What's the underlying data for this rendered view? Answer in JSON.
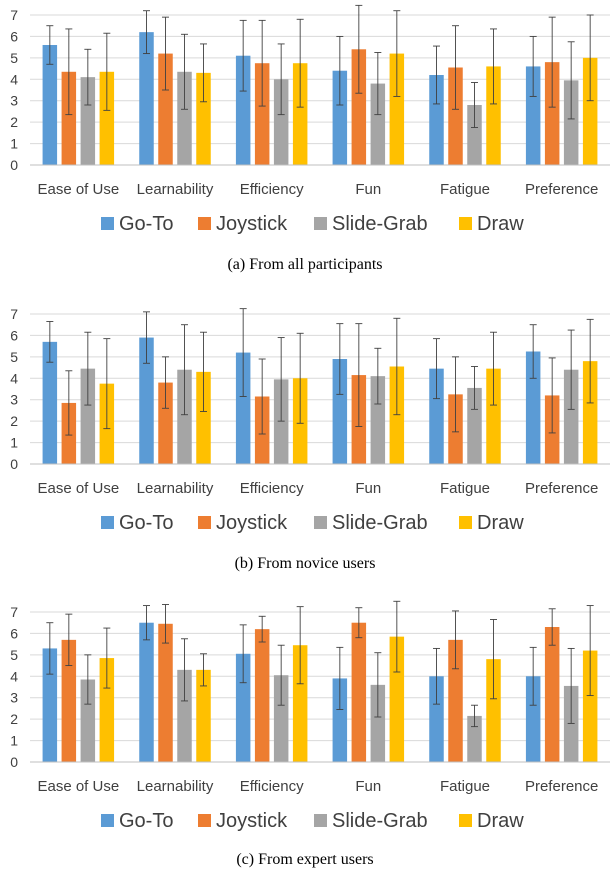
{
  "legend_colors": [
    "#5B9BD5",
    "#ED7D31",
    "#A5A5A5",
    "#FFC000"
  ],
  "chart_data": [
    {
      "type": "bar",
      "caption": "(a)  From all participants",
      "categories": [
        "Ease of Use",
        "Learnability",
        "Efficiency",
        "Fun",
        "Fatigue",
        "Preference"
      ],
      "yticks": [
        "0",
        "1",
        "2",
        "3",
        "4",
        "5",
        "6",
        "7"
      ],
      "ylim": [
        0,
        7
      ],
      "grid": true,
      "error_bars": true,
      "legend_position": "bottom",
      "series": [
        {
          "name": "Go-To",
          "values": [
            5.6,
            6.2,
            5.1,
            4.4,
            4.2,
            4.6
          ],
          "errors": [
            0.9,
            1.0,
            1.65,
            1.6,
            1.35,
            1.4
          ]
        },
        {
          "name": "Joystick",
          "values": [
            4.35,
            5.2,
            4.75,
            5.4,
            4.55,
            4.8
          ],
          "errors": [
            2.0,
            1.7,
            2.0,
            2.05,
            1.95,
            2.1
          ]
        },
        {
          "name": "Slide-Grab",
          "values": [
            4.1,
            4.35,
            4.0,
            3.8,
            2.8,
            3.95
          ],
          "errors": [
            1.3,
            1.75,
            1.65,
            1.45,
            1.05,
            1.8
          ]
        },
        {
          "name": "Draw",
          "values": [
            4.35,
            4.3,
            4.75,
            5.2,
            4.6,
            5.0
          ],
          "errors": [
            1.8,
            1.35,
            2.05,
            2.0,
            1.75,
            2.0
          ]
        }
      ]
    },
    {
      "type": "bar",
      "caption": "(b)  From novice users",
      "categories": [
        "Ease of Use",
        "Learnability",
        "Efficiency",
        "Fun",
        "Fatigue",
        "Preference"
      ],
      "yticks": [
        "0",
        "1",
        "2",
        "3",
        "4",
        "5",
        "6",
        "7"
      ],
      "ylim": [
        0,
        7
      ],
      "grid": true,
      "error_bars": true,
      "legend_position": "bottom",
      "series": [
        {
          "name": "Go-To",
          "values": [
            5.7,
            5.9,
            5.2,
            4.9,
            4.45,
            5.25
          ],
          "errors": [
            0.95,
            1.2,
            2.05,
            1.65,
            1.4,
            1.25
          ]
        },
        {
          "name": "Joystick",
          "values": [
            2.85,
            3.8,
            3.15,
            4.15,
            3.25,
            3.2
          ],
          "errors": [
            1.5,
            1.2,
            1.75,
            2.4,
            1.75,
            1.75
          ]
        },
        {
          "name": "Slide-Grab",
          "values": [
            4.45,
            4.4,
            3.95,
            4.1,
            3.55,
            4.4
          ],
          "errors": [
            1.7,
            2.1,
            1.95,
            1.3,
            1.0,
            1.85
          ]
        },
        {
          "name": "Draw",
          "values": [
            3.75,
            4.3,
            4.0,
            4.55,
            4.45,
            4.8
          ],
          "errors": [
            2.1,
            1.85,
            2.1,
            2.25,
            1.7,
            1.95
          ]
        }
      ]
    },
    {
      "type": "bar",
      "caption": "(c)  From expert users",
      "categories": [
        "Ease of Use",
        "Learnability",
        "Efficiency",
        "Fun",
        "Fatigue",
        "Preference"
      ],
      "yticks": [
        "0",
        "1",
        "2",
        "3",
        "4",
        "5",
        "6",
        "7"
      ],
      "ylim": [
        0,
        7
      ],
      "grid": true,
      "error_bars": true,
      "legend_position": "bottom",
      "series": [
        {
          "name": "Go-To",
          "values": [
            5.3,
            6.5,
            5.05,
            3.9,
            4.0,
            4.0
          ],
          "errors": [
            1.2,
            0.8,
            1.35,
            1.45,
            1.3,
            1.35
          ]
        },
        {
          "name": "Joystick",
          "values": [
            5.7,
            6.45,
            6.2,
            6.5,
            5.7,
            6.3
          ],
          "errors": [
            1.2,
            0.9,
            0.6,
            0.7,
            1.35,
            0.85
          ]
        },
        {
          "name": "Slide-Grab",
          "values": [
            3.85,
            4.3,
            4.05,
            3.6,
            2.15,
            3.55
          ],
          "errors": [
            1.15,
            1.45,
            1.4,
            1.5,
            0.5,
            1.75
          ]
        },
        {
          "name": "Draw",
          "values": [
            4.85,
            4.3,
            5.45,
            5.85,
            4.8,
            5.2
          ],
          "errors": [
            1.4,
            0.75,
            1.8,
            1.65,
            1.85,
            2.1
          ]
        }
      ]
    }
  ]
}
